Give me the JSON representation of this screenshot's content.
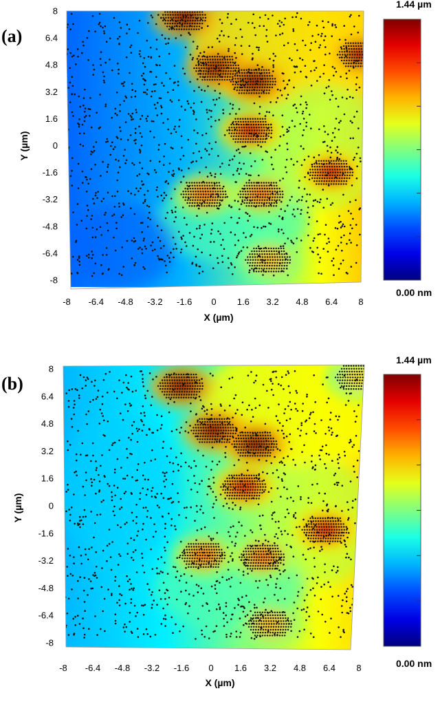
{
  "chart_data": [
    {
      "type": "heatmap",
      "panel_label": "(a)",
      "xlabel": "X (µm)",
      "ylabel": "Y (µm)",
      "xlim": [
        -8,
        8
      ],
      "ylim": [
        -8,
        8
      ],
      "x_ticks": [
        "-8",
        "-6.4",
        "-4.8",
        "-3.2",
        "-1.6",
        "0",
        "1.6",
        "3.2",
        "4.8",
        "6.4",
        "8"
      ],
      "y_ticks": [
        "8",
        "6.4",
        "4.8",
        "3.2",
        "1.6",
        "0",
        "-1.6",
        "-3.2",
        "-4.8",
        "-6.4",
        "-8"
      ],
      "colorbar": {
        "max_label": "1.44 µm",
        "min_label": "0.00 nm",
        "range": [
          0,
          1.44
        ],
        "colormap": "jet"
      },
      "hotspots": [
        {
          "x": -1.6,
          "y": 7.6,
          "value": 1.4
        },
        {
          "x": 0.2,
          "y": 4.6,
          "value": 1.4
        },
        {
          "x": 2.2,
          "y": 3.8,
          "value": 1.4
        },
        {
          "x": 2.0,
          "y": 0.9,
          "value": 1.3
        },
        {
          "x": 6.4,
          "y": -1.6,
          "value": 1.3
        },
        {
          "x": -0.5,
          "y": -2.9,
          "value": 1.1
        },
        {
          "x": 2.6,
          "y": -2.9,
          "value": 1.1
        },
        {
          "x": 3.0,
          "y": -6.8,
          "value": 1.0
        },
        {
          "x": 8.0,
          "y": 5.4,
          "value": 1.35
        }
      ]
    },
    {
      "type": "heatmap",
      "panel_label": "(b)",
      "xlabel": "X (µm)",
      "ylabel": "Y (µm)",
      "xlim": [
        -8,
        8
      ],
      "ylim": [
        -8,
        8
      ],
      "x_ticks": [
        "-8",
        "-6.4",
        "-4.8",
        "-3.2",
        "-1.6",
        "0",
        "1.6",
        "3.2",
        "4.8",
        "6.4",
        "8"
      ],
      "y_ticks": [
        "8",
        "6.4",
        "4.8",
        "3.2",
        "1.6",
        "0",
        "-1.6",
        "-3.2",
        "-4.8",
        "-6.4",
        "-8"
      ],
      "colorbar": {
        "max_label": "1.44 µm",
        "min_label": "0.00 nm",
        "range": [
          0,
          1.44
        ],
        "colormap": "jet"
      },
      "hotspots": [
        {
          "x": -1.6,
          "y": 7.0,
          "value": 1.4
        },
        {
          "x": 0.2,
          "y": 4.4,
          "value": 1.4
        },
        {
          "x": 2.4,
          "y": 3.6,
          "value": 1.4
        },
        {
          "x": 1.8,
          "y": 1.1,
          "value": 1.3
        },
        {
          "x": 6.2,
          "y": -1.4,
          "value": 1.3
        },
        {
          "x": -0.4,
          "y": -2.9,
          "value": 1.1
        },
        {
          "x": 2.8,
          "y": -3.0,
          "value": 1.1
        },
        {
          "x": 3.2,
          "y": -6.9,
          "value": 1.0
        },
        {
          "x": 8.0,
          "y": 7.5,
          "value": 0.95
        }
      ]
    }
  ]
}
